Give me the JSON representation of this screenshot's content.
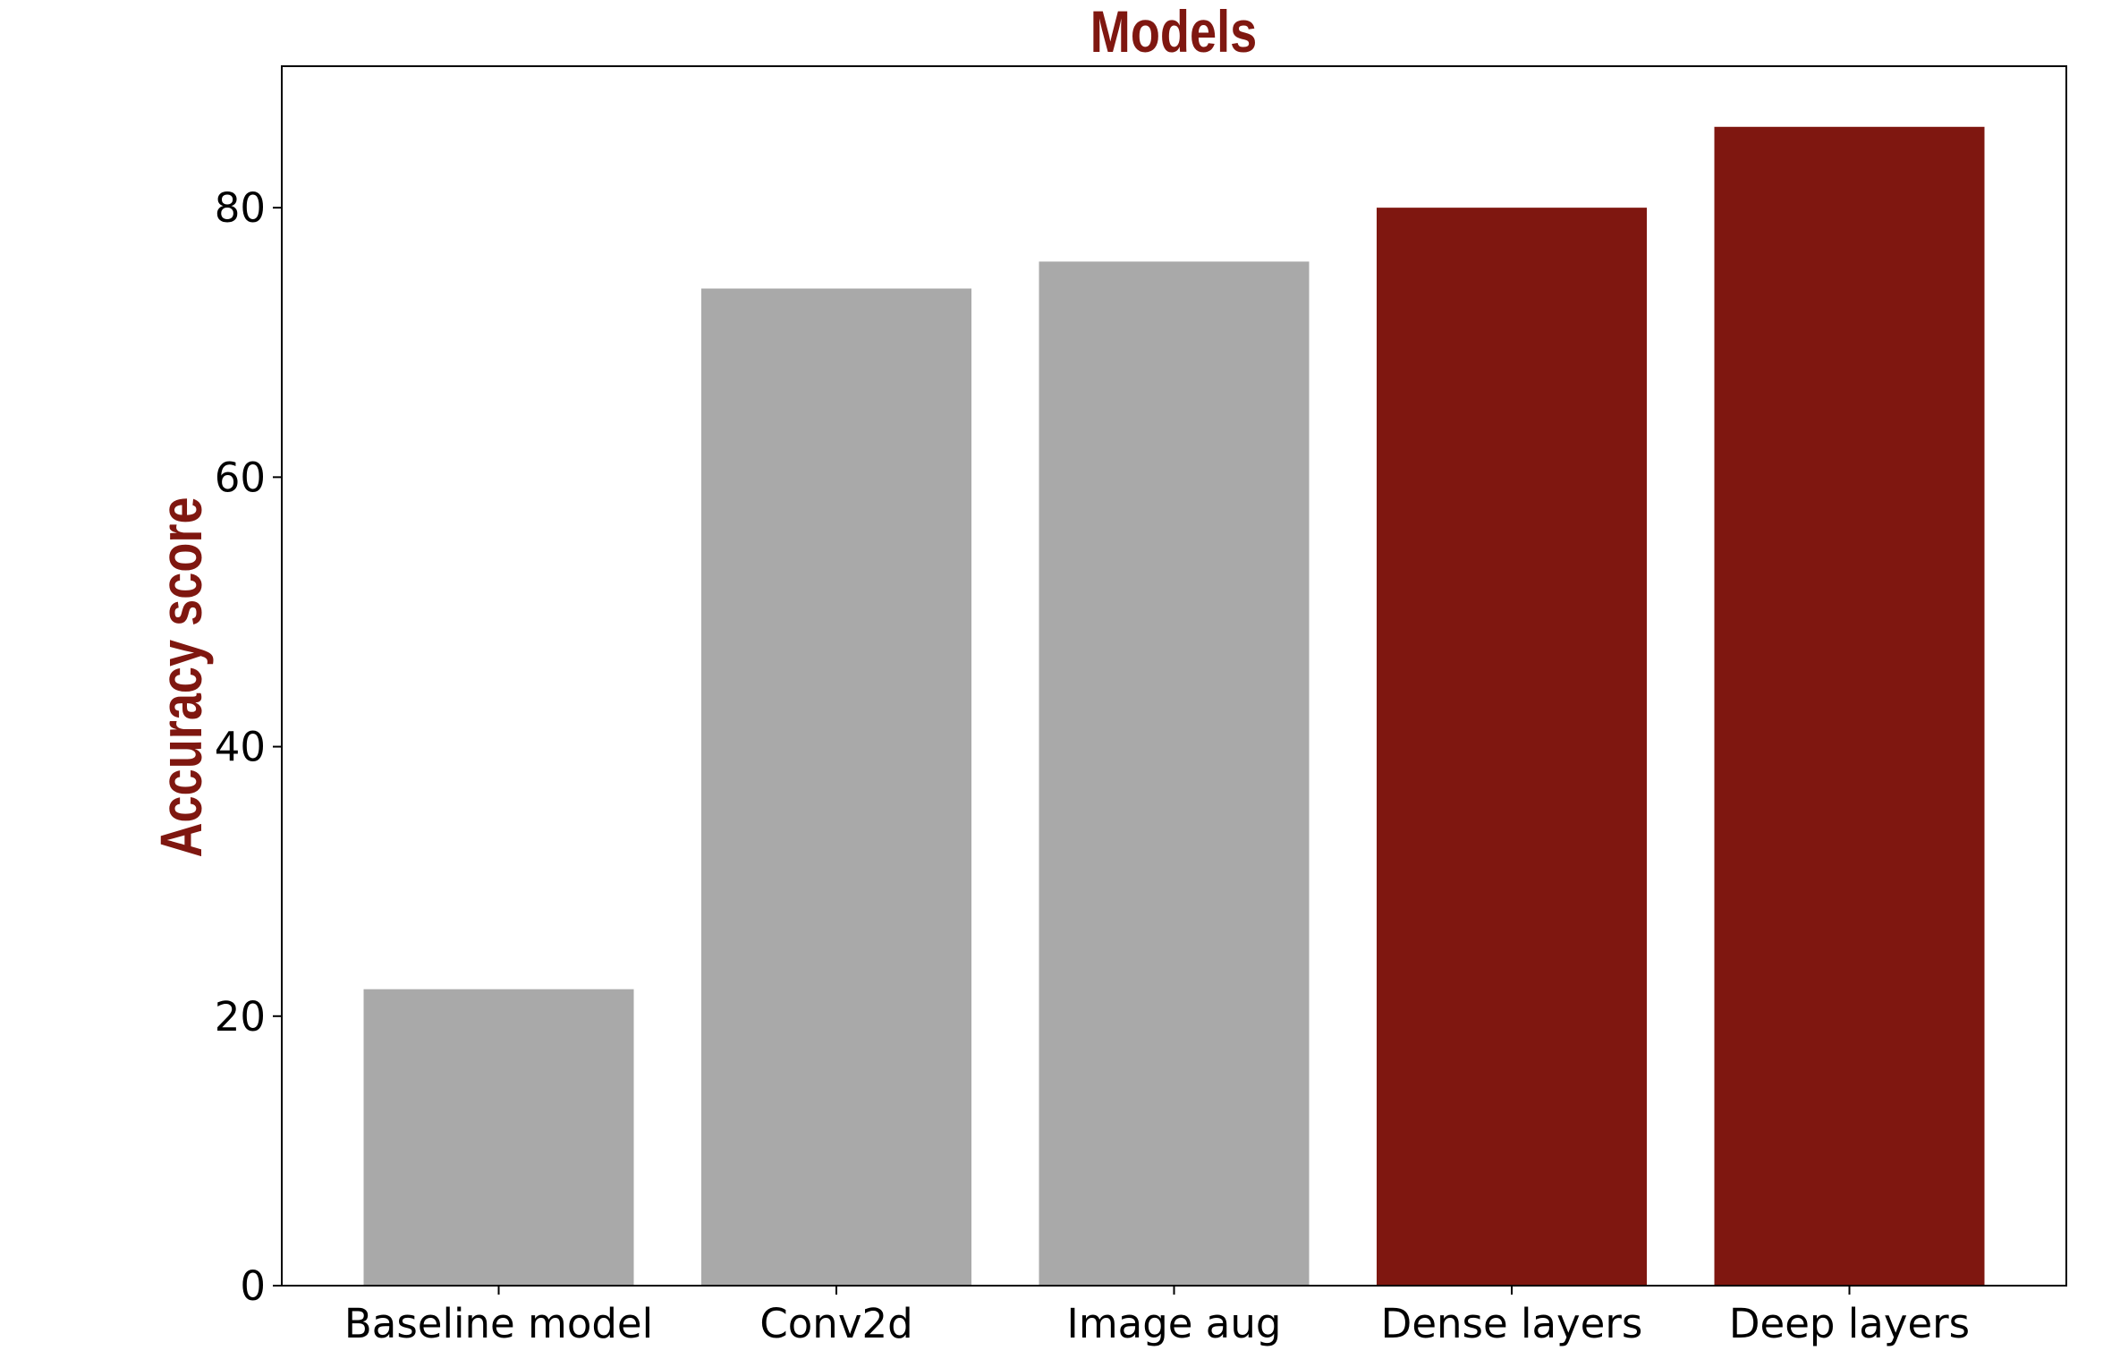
{
  "chart_data": {
    "type": "bar",
    "title": "Models",
    "xlabel": "",
    "ylabel": "Accuracy score",
    "categories": [
      "Baseline model",
      "Conv2d",
      "Image aug",
      "Dense layers",
      "Deep layers"
    ],
    "values": [
      22,
      74,
      76,
      80,
      86
    ],
    "bar_colors": [
      "#a9a9a9",
      "#a9a9a9",
      "#a9a9a9",
      "#7f1710",
      "#7f1710"
    ],
    "ylim": [
      0,
      90.5
    ],
    "yticks": [
      0,
      20,
      40,
      60,
      80
    ],
    "grid": false,
    "legend": "none"
  },
  "colors": {
    "title": "#7f1710",
    "ylabel": "#7f1710",
    "axis": "#000000"
  }
}
